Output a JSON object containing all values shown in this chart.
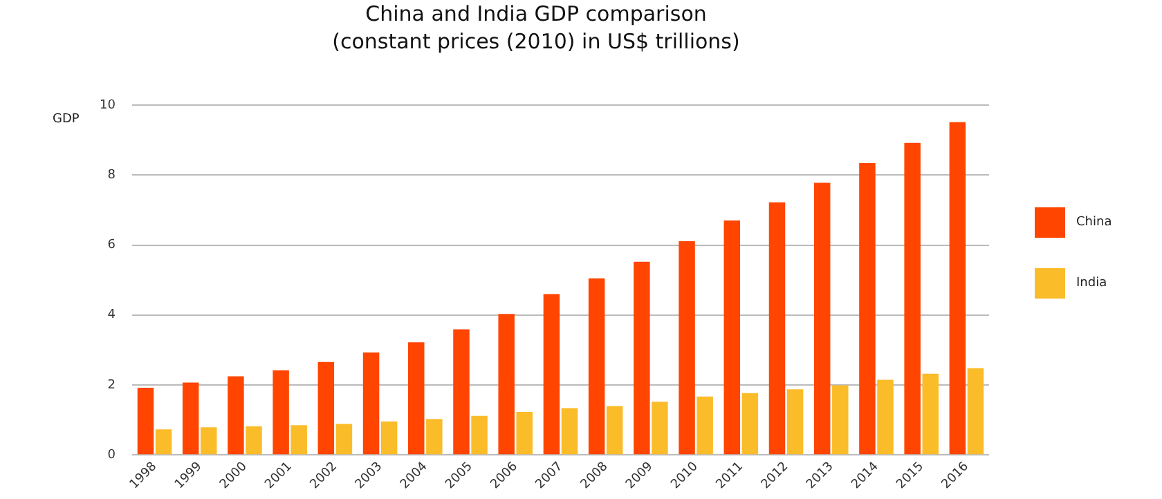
{
  "chart_data": {
    "type": "bar",
    "title": "China and India GDP comparison",
    "subtitle": "(constant prices (2010) in US$ trillions)",
    "ylabel": "GDP",
    "categories": [
      "1998",
      "1999",
      "2000",
      "2001",
      "2002",
      "2003",
      "2004",
      "2005",
      "2006",
      "2007",
      "2008",
      "2009",
      "2010",
      "2011",
      "2012",
      "2013",
      "2014",
      "2015",
      "2016"
    ],
    "series": [
      {
        "name": "China",
        "color": "#ff4500",
        "values": [
          1.92,
          2.07,
          2.25,
          2.42,
          2.66,
          2.93,
          3.22,
          3.59,
          4.03,
          4.6,
          5.05,
          5.52,
          6.11,
          6.7,
          7.22,
          7.78,
          8.34,
          8.92,
          9.51
        ]
      },
      {
        "name": "India",
        "color": "#fbbc2a",
        "values": [
          0.73,
          0.79,
          0.82,
          0.85,
          0.89,
          0.96,
          1.03,
          1.12,
          1.23,
          1.34,
          1.4,
          1.52,
          1.67,
          1.77,
          1.88,
          1.99,
          2.15,
          2.32,
          2.48
        ]
      }
    ],
    "ylim": [
      0,
      10
    ],
    "yticks": [
      0,
      2,
      4,
      6,
      8,
      10
    ],
    "grid": "y",
    "legend": "right"
  }
}
